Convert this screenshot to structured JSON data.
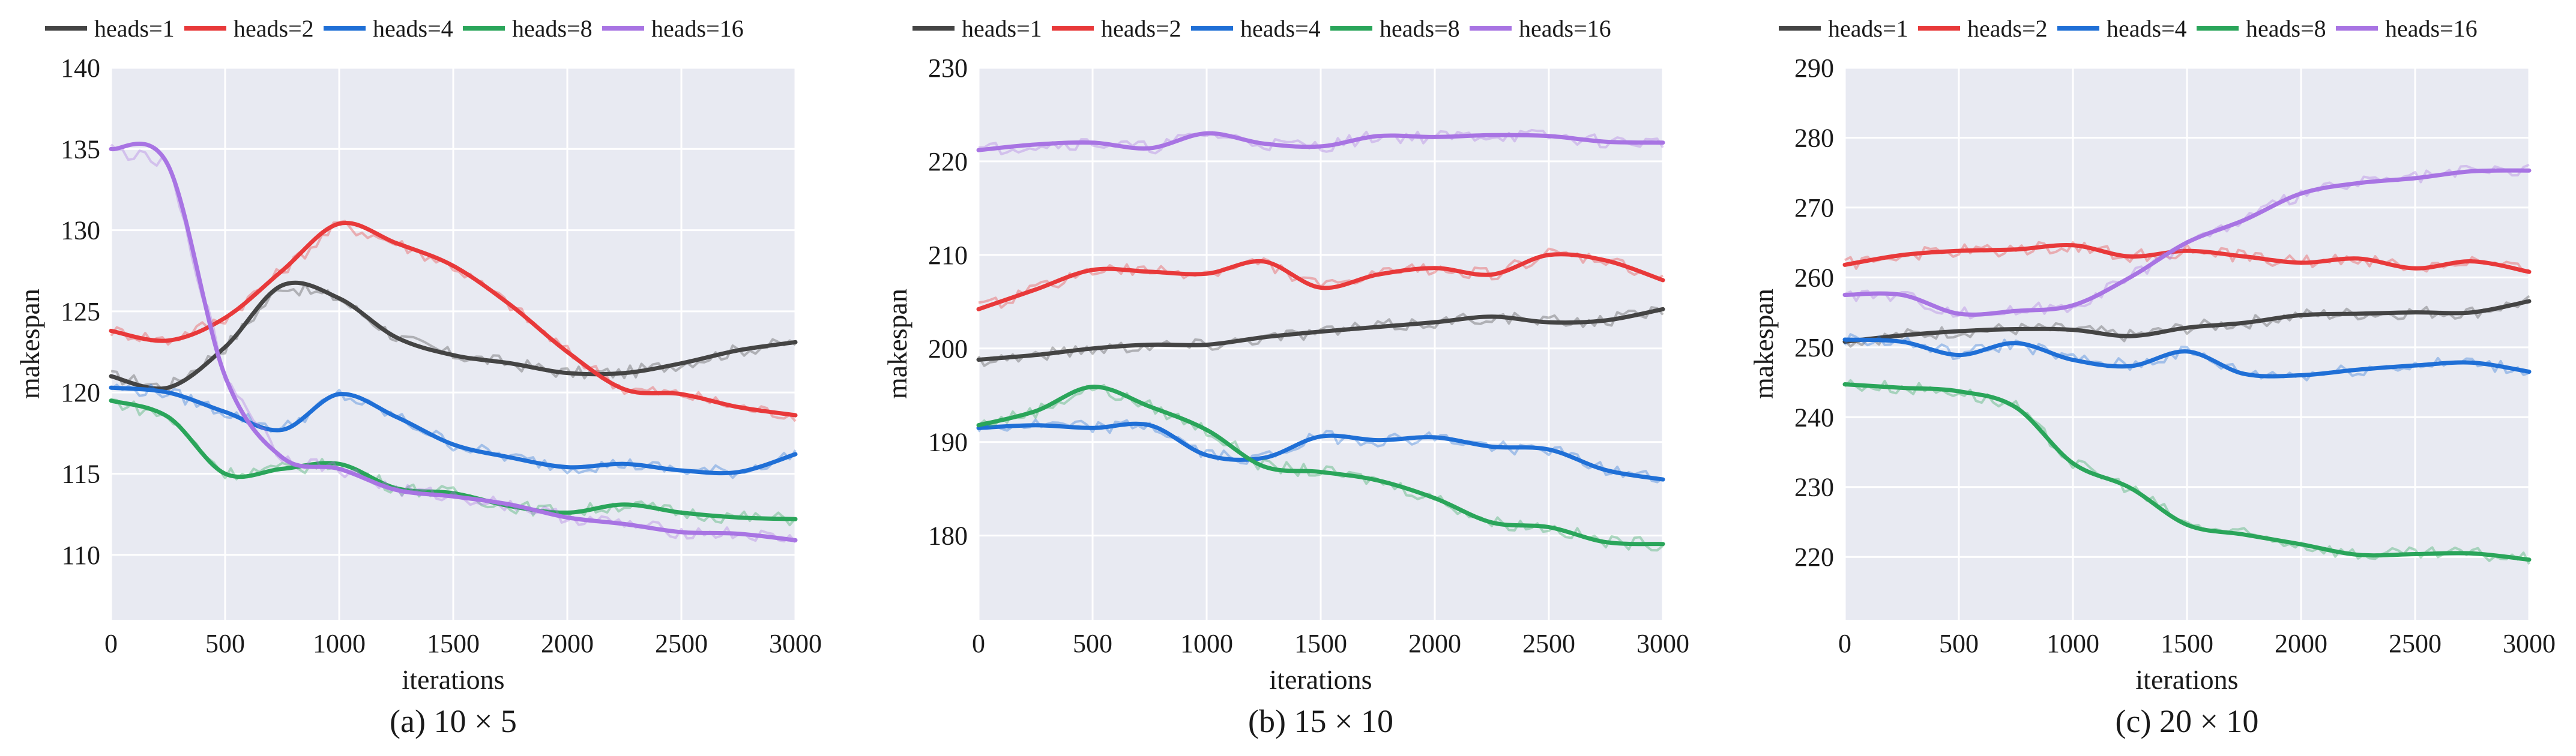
{
  "colors": {
    "heads=1": "#444444",
    "heads=2": "#e8393a",
    "heads=4": "#1f6fd6",
    "heads=8": "#2aa55a",
    "heads=16": "#a874e3",
    "plot_background": "#e8eaf2",
    "grid": "#ffffff"
  },
  "chart_data": [
    {
      "type": "line",
      "caption": "(a) 10 × 5",
      "xlabel": "iterations",
      "ylabel": "makespan",
      "xlim": [
        0,
        3000
      ],
      "ylim": [
        106,
        140
      ],
      "xticks": [
        0,
        500,
        1000,
        1500,
        2000,
        2500,
        3000
      ],
      "yticks": [
        110,
        115,
        120,
        125,
        130,
        135,
        140
      ],
      "grid": true,
      "legend": [
        "heads=1",
        "heads=2",
        "heads=4",
        "heads=8",
        "heads=16"
      ],
      "legend_position": "top",
      "x": [
        0,
        250,
        500,
        750,
        1000,
        1250,
        1500,
        1750,
        2000,
        2250,
        2500,
        2750,
        3000
      ],
      "series": [
        {
          "name": "heads=1",
          "values": [
            121.0,
            120.3,
            122.8,
            126.6,
            125.8,
            123.4,
            122.3,
            121.8,
            121.2,
            121.2,
            121.8,
            122.6,
            123.1
          ]
        },
        {
          "name": "heads=2",
          "values": [
            123.8,
            123.2,
            124.6,
            127.5,
            130.4,
            129.2,
            127.8,
            125.4,
            122.5,
            120.2,
            119.9,
            119.1,
            118.6
          ]
        },
        {
          "name": "heads=4",
          "values": [
            120.3,
            120.0,
            118.8,
            117.7,
            119.9,
            118.5,
            116.8,
            116.0,
            115.4,
            115.6,
            115.2,
            115.1,
            116.2
          ]
        },
        {
          "name": "heads=8",
          "values": [
            119.5,
            118.5,
            115.0,
            115.3,
            115.6,
            114.1,
            113.8,
            113.0,
            112.6,
            113.1,
            112.6,
            112.3,
            112.2
          ]
        },
        {
          "name": "heads=16",
          "values": [
            135.0,
            134.0,
            121.0,
            116.0,
            115.3,
            114.0,
            113.6,
            113.1,
            112.3,
            111.9,
            111.4,
            111.3,
            110.9
          ]
        }
      ]
    },
    {
      "type": "line",
      "caption": "(b) 15 × 10",
      "xlabel": "iterations",
      "ylabel": "makespan",
      "xlim": [
        0,
        3000
      ],
      "ylim": [
        171,
        230
      ],
      "xticks": [
        0,
        500,
        1000,
        1500,
        2000,
        2500,
        3000
      ],
      "yticks": [
        180,
        190,
        200,
        210,
        220,
        230
      ],
      "grid": true,
      "legend": [
        "heads=1",
        "heads=2",
        "heads=4",
        "heads=8",
        "heads=16"
      ],
      "legend_position": "top",
      "x": [
        0,
        250,
        500,
        750,
        1000,
        1250,
        1500,
        1750,
        2000,
        2250,
        2500,
        2750,
        3000
      ],
      "series": [
        {
          "name": "heads=1",
          "values": [
            198.8,
            199.3,
            200.0,
            200.4,
            200.4,
            201.2,
            201.8,
            202.3,
            202.8,
            203.4,
            202.8,
            203.0,
            204.2
          ]
        },
        {
          "name": "heads=2",
          "values": [
            204.2,
            206.3,
            208.4,
            208.2,
            208.0,
            209.3,
            206.5,
            207.9,
            208.6,
            207.9,
            210.0,
            209.4,
            207.3
          ]
        },
        {
          "name": "heads=4",
          "values": [
            191.5,
            191.8,
            191.5,
            191.8,
            188.6,
            188.3,
            190.6,
            190.2,
            190.5,
            189.5,
            189.2,
            187.0,
            186.0
          ]
        },
        {
          "name": "heads=8",
          "values": [
            191.8,
            193.3,
            195.9,
            193.8,
            191.3,
            187.4,
            186.8,
            185.9,
            184.0,
            181.4,
            180.9,
            179.3,
            179.1
          ]
        },
        {
          "name": "heads=16",
          "values": [
            221.2,
            221.8,
            222.0,
            221.4,
            223.0,
            221.9,
            221.6,
            222.7,
            222.6,
            222.8,
            222.7,
            222.1,
            222.0
          ]
        }
      ]
    },
    {
      "type": "line",
      "caption": "(c) 20 × 10",
      "xlabel": "iterations",
      "ylabel": "makespan",
      "xlim": [
        0,
        3000
      ],
      "ylim": [
        211,
        290
      ],
      "xticks": [
        0,
        500,
        1000,
        1500,
        2000,
        2500,
        3000
      ],
      "yticks": [
        220,
        230,
        240,
        250,
        260,
        270,
        280,
        290
      ],
      "grid": true,
      "legend": [
        "heads=1",
        "heads=2",
        "heads=4",
        "heads=8",
        "heads=16"
      ],
      "legend_position": "top",
      "x": [
        0,
        250,
        500,
        750,
        1000,
        1250,
        1500,
        1750,
        2000,
        2250,
        2500,
        2750,
        3000
      ],
      "series": [
        {
          "name": "heads=1",
          "values": [
            250.8,
            251.7,
            252.3,
            252.6,
            252.5,
            251.6,
            252.8,
            253.5,
            254.6,
            254.8,
            255.0,
            255.0,
            256.6
          ]
        },
        {
          "name": "heads=2",
          "values": [
            261.8,
            263.2,
            263.8,
            264.0,
            264.6,
            263.0,
            263.8,
            263.0,
            262.1,
            262.7,
            261.3,
            262.3,
            260.8
          ]
        },
        {
          "name": "heads=4",
          "values": [
            251.1,
            250.8,
            248.9,
            250.6,
            248.2,
            247.3,
            249.4,
            246.2,
            246.0,
            246.8,
            247.4,
            247.8,
            246.5
          ]
        },
        {
          "name": "heads=8",
          "values": [
            244.7,
            244.2,
            243.7,
            241.4,
            233.4,
            229.9,
            224.6,
            223.2,
            221.8,
            220.3,
            220.4,
            220.5,
            219.6
          ]
        },
        {
          "name": "heads=16",
          "values": [
            257.5,
            257.5,
            254.8,
            255.2,
            256.0,
            260.0,
            265.0,
            268.2,
            272.0,
            273.5,
            274.2,
            275.2,
            275.3
          ]
        }
      ]
    }
  ]
}
